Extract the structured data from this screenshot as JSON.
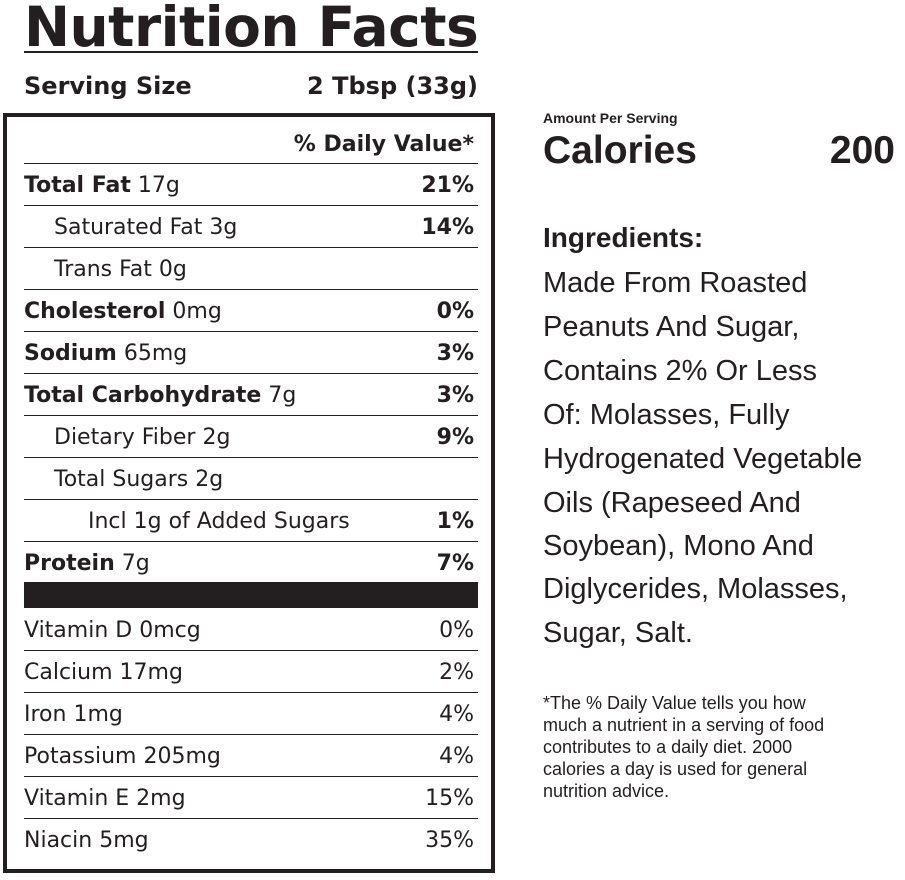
{
  "label": {
    "title": "Nutrition Facts",
    "serving_size_label": "Serving Size",
    "serving_size_value": "2 Tbsp (33g)",
    "daily_value_header": "% Daily Value*",
    "nutrients": [
      {
        "name": "Total Fat",
        "amount": "17g",
        "dv": "21%"
      },
      {
        "name": "Saturated Fat",
        "amount": "3g",
        "dv": "14%"
      },
      {
        "name": "Trans Fat",
        "amount": "0g",
        "dv": ""
      },
      {
        "name": "Cholesterol",
        "amount": "0mg",
        "dv": "0%"
      },
      {
        "name": "Sodium",
        "amount": "65mg",
        "dv": "3%"
      },
      {
        "name": "Total Carbohydrate",
        "amount": "7g",
        "dv": "3%"
      },
      {
        "name": "Dietary Fiber",
        "amount": "2g",
        "dv": "9%"
      },
      {
        "name": "Total Sugars",
        "amount": "2g",
        "dv": ""
      },
      {
        "name": "Incl 1g of Added Sugars",
        "amount": "",
        "dv": "1%"
      },
      {
        "name": "Protein",
        "amount": "7g",
        "dv": "7%"
      }
    ],
    "vitamins": [
      {
        "text": "Vitamin D 0mcg",
        "dv": "0%"
      },
      {
        "text": "Calcium 17mg",
        "dv": "2%"
      },
      {
        "text": "Iron 1mg",
        "dv": "4%"
      },
      {
        "text": "Potassium 205mg",
        "dv": "4%"
      },
      {
        "text": "Vitamin E 2mg",
        "dv": "15%"
      },
      {
        "text": "Niacin 5mg",
        "dv": "35%"
      }
    ]
  },
  "calories": {
    "amount_per_serving": "Amount Per Serving",
    "label": "Calories",
    "value": "200"
  },
  "ingredients": {
    "heading": "Ingredients:",
    "lines": [
      "Made From Roasted",
      "Peanuts And Sugar,",
      "Contains 2% Or Less",
      "Of: Molasses, Fully",
      "Hydrogenated Vegetable",
      "Oils (Rapeseed And",
      "Soybean), Mono And",
      "Diglycerides, Molasses,",
      "Sugar, Salt."
    ]
  },
  "footnote": {
    "lines": [
      "*The % Daily Value tells you how",
      "much a nutrient in a serving of food",
      "contributes to a daily diet. 2000",
      "calories a day is used for general",
      "nutrition advice."
    ]
  }
}
